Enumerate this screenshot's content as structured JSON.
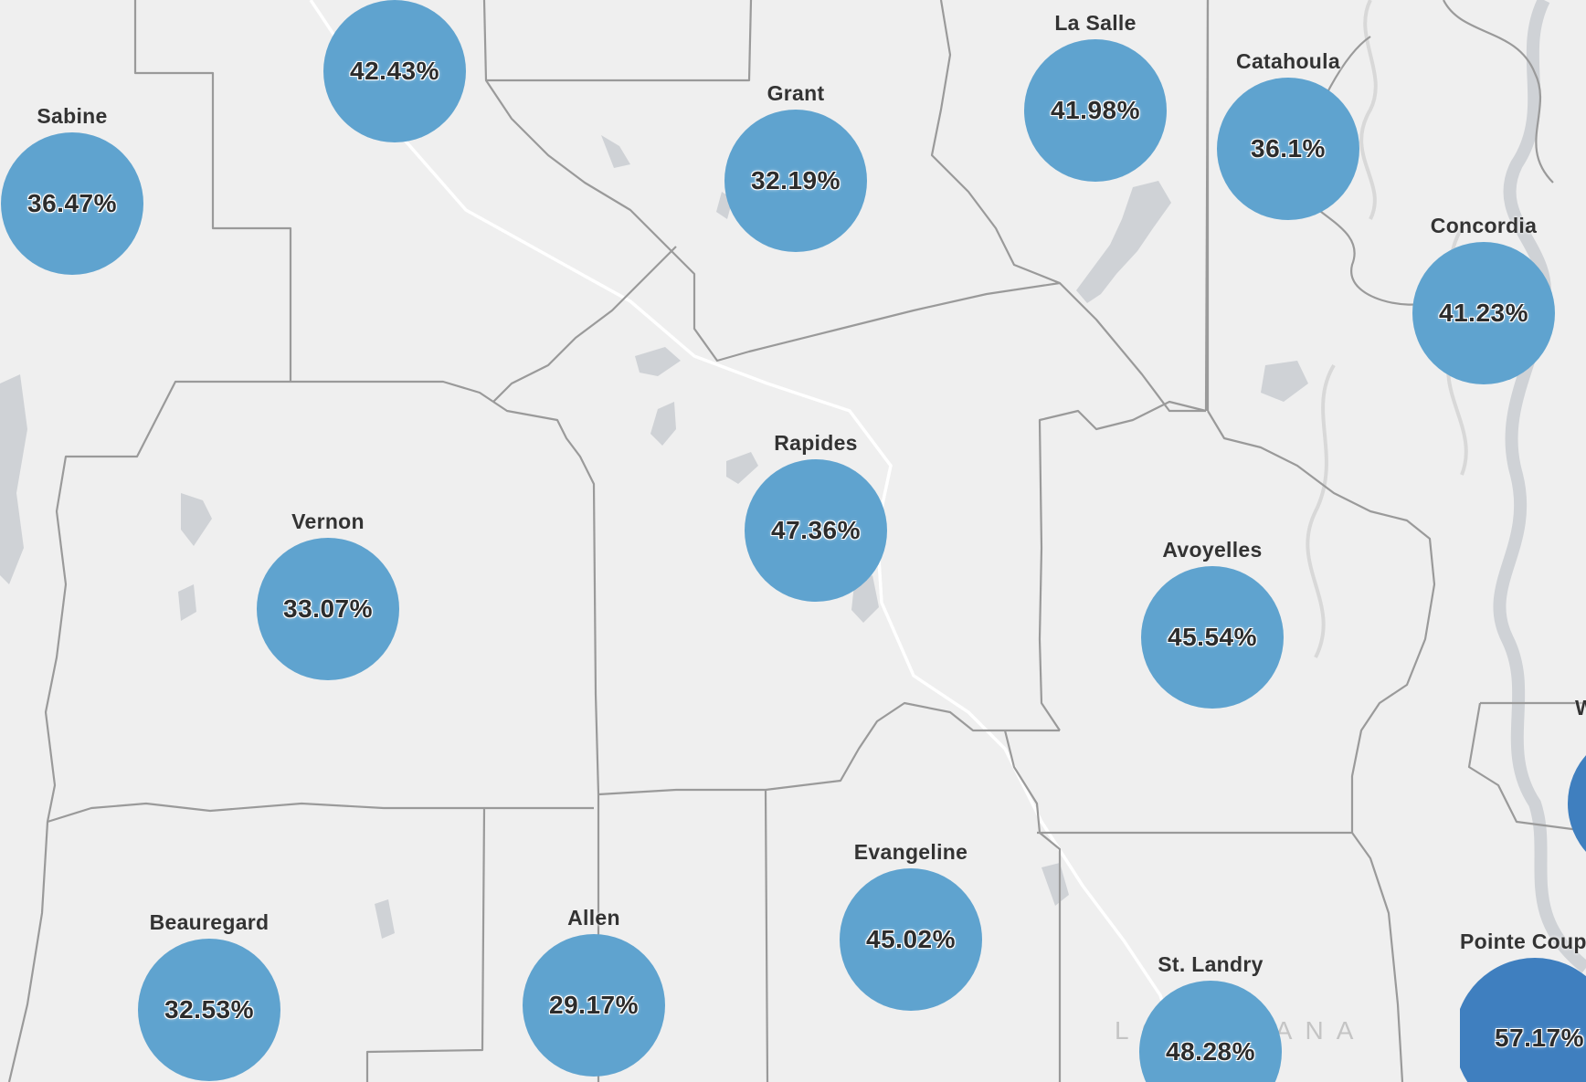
{
  "map": {
    "watermark": "LOUISIANA",
    "colors": {
      "background": "#efefef",
      "border": "#9a9a9a",
      "water": "#cfd2d6",
      "road": "#ffffff",
      "bubble": "#5fa3cf",
      "bubble_dark": "#3f7fbf"
    },
    "parishes": [
      {
        "name": "",
        "value": "42.43%"
      },
      {
        "name": "Sabine",
        "value": "36.47%"
      },
      {
        "name": "Grant",
        "value": "32.19%"
      },
      {
        "name": "La Salle",
        "value": "41.98%"
      },
      {
        "name": "Catahoula",
        "value": "36.1%"
      },
      {
        "name": "Concordia",
        "value": "41.23%"
      },
      {
        "name": "Rapides",
        "value": "47.36%"
      },
      {
        "name": "Vernon",
        "value": "33.07%"
      },
      {
        "name": "Avoyelles",
        "value": "45.54%"
      },
      {
        "name": "Evangeline",
        "value": "45.02%"
      },
      {
        "name": "Beauregard",
        "value": "32.53%"
      },
      {
        "name": "Allen",
        "value": "29.17%"
      },
      {
        "name": "St. Landry",
        "value": "48.28%"
      },
      {
        "name": "Pointe Coup",
        "value": "57.17%"
      },
      {
        "name": "W",
        "value": ""
      }
    ]
  }
}
